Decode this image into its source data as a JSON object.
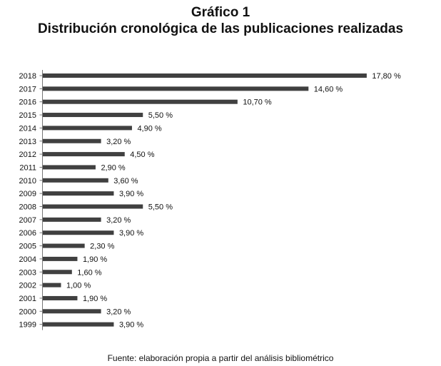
{
  "chart_data": {
    "type": "bar",
    "orientation": "horizontal",
    "title": "Gráfico 1",
    "subtitle": "Distribución cronológica de las publicaciones realizadas",
    "source": "Fuente: elaboración propia a partir del análisis bibliométrico",
    "categories": [
      "2018",
      "2017",
      "2016",
      "2015",
      "2014",
      "2013",
      "2012",
      "2011",
      "2010",
      "2009",
      "2008",
      "2007",
      "2006",
      "2005",
      "2004",
      "2003",
      "2002",
      "2001",
      "2000",
      "1999"
    ],
    "values": [
      17.8,
      14.6,
      10.7,
      5.5,
      4.9,
      3.2,
      4.5,
      2.9,
      3.6,
      3.9,
      5.5,
      3.2,
      3.9,
      2.3,
      1.9,
      1.6,
      1.0,
      1.9,
      3.2,
      3.9
    ],
    "labels": [
      "17,80 %",
      "14,60 %",
      "10,70 %",
      "5,50 %",
      "4,90 %",
      "3,20 %",
      "4,50 %",
      "2,90 %",
      "3,60 %",
      "3,90 %",
      "5,50 %",
      "3,20 %",
      "3,90 %",
      "2,30 %",
      "1,90 %",
      "1,60 %",
      "1,00 %",
      "1,90 %",
      "3,20 %",
      "3,90 %"
    ],
    "bar_color": "#404040",
    "grid": false,
    "legend": "none"
  }
}
